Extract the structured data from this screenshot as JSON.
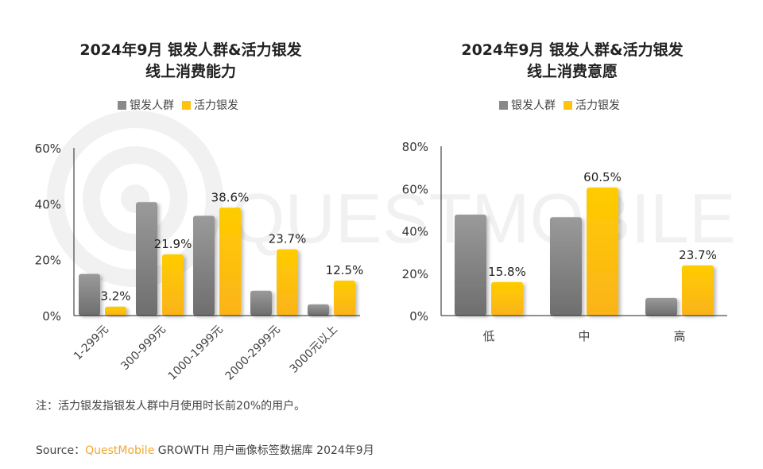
{
  "colors": {
    "gray": "#8a8a8a",
    "yellow": "#ffc20e",
    "brand": "#f0a830"
  },
  "watermark": "QUESTMOBILE",
  "note": "注：活力银发指银发人群中月使用时长前20%的用户。",
  "source": {
    "prefix": "Source：",
    "brand": "QuestMobile",
    "rest": " GROWTH 用户画像标签数据库 2024年9月"
  },
  "chart_data": [
    {
      "type": "bar",
      "title_line1": "2024年9月 银发人群&活力银发",
      "title_line2": "线上消费能力",
      "categories": [
        "1-299元",
        "300-999元",
        "1000-1999元",
        "2000-2999元",
        "3000元以上"
      ],
      "series": [
        {
          "name": "银发人群",
          "values": [
            14.9,
            40.6,
            35.7,
            8.9,
            4.0
          ],
          "labeled": false
        },
        {
          "name": "活力银发",
          "values": [
            3.2,
            21.9,
            38.6,
            23.7,
            12.5
          ],
          "labeled": true
        }
      ],
      "ylim": [
        0,
        60
      ],
      "yticks": [
        "0%",
        "20%",
        "40%",
        "60%"
      ],
      "legend": "top",
      "grid": false
    },
    {
      "type": "bar",
      "title_line1": "2024年9月 银发人群&活力银发",
      "title_line2": "线上消费意愿",
      "categories": [
        "低",
        "中",
        "高"
      ],
      "series": [
        {
          "name": "银发人群",
          "values": [
            47.7,
            46.5,
            8.3
          ],
          "labeled": false
        },
        {
          "name": "活力银发",
          "values": [
            15.8,
            60.5,
            23.7
          ],
          "labeled": true
        }
      ],
      "ylim": [
        0,
        80
      ],
      "yticks": [
        "0%",
        "20%",
        "40%",
        "60%",
        "80%"
      ],
      "legend": "top",
      "grid": false
    }
  ]
}
